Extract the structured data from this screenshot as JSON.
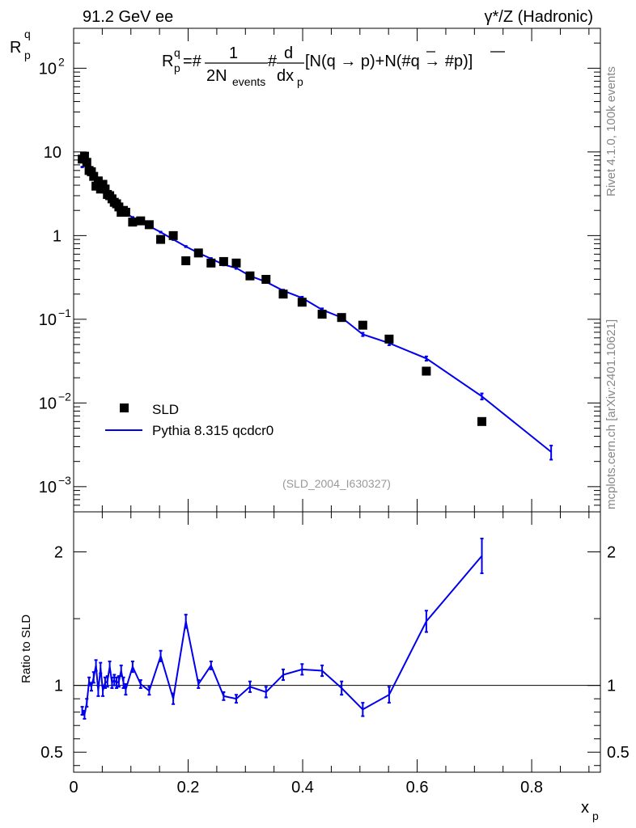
{
  "header": {
    "left_title": "91.2 GeV ee",
    "right_title": "γ*/Z (Hadronic)"
  },
  "side": {
    "rivet": "Rivet 4.1.0,  100k events",
    "mcplots": "mcplots.cern.ch [arXiv:2401.10621]"
  },
  "formula": {
    "lhs": "R",
    "lhs_sub": "p",
    "lhs_sup": "q",
    "eq": "=#",
    "frac_num": "1",
    "frac_den": "2N",
    "frac_den_sub": "events",
    "hash2": "#",
    "d_num": "d",
    "d_den": "dx",
    "d_den_sub": "p",
    "bracket": "[N(q →  p)+N(#q →  #p)]"
  },
  "analysis_tag": "(SLD_2004_I630327)",
  "legend": {
    "data_label": "SLD",
    "mc_label": "Pythia 8.315 qcdcr0"
  },
  "colors": {
    "mc": "#0000ee",
    "data": "#000000",
    "side_text": "#888888"
  },
  "chart_data": [
    {
      "type": "scatter+line",
      "ylabel": "R",
      "ylabel_sub": "p",
      "ylabel_sup": "q",
      "yscale": "log",
      "ylim": [
        0.0005,
        300
      ],
      "xlim": [
        0,
        0.92
      ],
      "yticks": [
        {
          "value": 0.001,
          "base": "10",
          "exp": "−3"
        },
        {
          "value": 0.01,
          "base": "10",
          "exp": "−2"
        },
        {
          "value": 0.1,
          "base": "10",
          "exp": "−1"
        },
        {
          "value": 1,
          "base": "1",
          "exp": ""
        },
        {
          "value": 10,
          "base": "10",
          "exp": ""
        },
        {
          "value": 100,
          "base": "10",
          "exp": "2"
        }
      ],
      "series": [
        {
          "name": "SLD",
          "kind": "markers",
          "x": [
            0.015,
            0.019,
            0.023,
            0.027,
            0.031,
            0.035,
            0.039,
            0.043,
            0.047,
            0.051,
            0.055,
            0.059,
            0.063,
            0.067,
            0.071,
            0.075,
            0.079,
            0.083,
            0.087,
            0.091,
            0.103,
            0.117,
            0.132,
            0.152,
            0.174,
            0.196,
            0.218,
            0.24,
            0.262,
            0.284,
            0.308,
            0.336,
            0.366,
            0.399,
            0.434,
            0.468,
            0.505,
            0.551,
            0.616,
            0.713
          ],
          "y": [
            8.2,
            8.9,
            7.5,
            6.0,
            5.8,
            5.1,
            3.9,
            4.5,
            3.6,
            4.1,
            3.6,
            3.1,
            3.0,
            2.75,
            2.5,
            2.4,
            2.2,
            1.9,
            2.0,
            1.9,
            1.45,
            1.5,
            1.35,
            0.9,
            1.0,
            0.5,
            0.62,
            0.47,
            0.49,
            0.47,
            0.33,
            0.3,
            0.2,
            0.16,
            0.115,
            0.105,
            0.085,
            0.058,
            0.024,
            0.006
          ]
        },
        {
          "name": "Pythia 8.315 qcdcr0",
          "kind": "line",
          "x": [
            0.015,
            0.019,
            0.023,
            0.027,
            0.031,
            0.035,
            0.039,
            0.043,
            0.047,
            0.051,
            0.055,
            0.059,
            0.063,
            0.067,
            0.071,
            0.075,
            0.079,
            0.083,
            0.087,
            0.091,
            0.103,
            0.117,
            0.132,
            0.152,
            0.174,
            0.196,
            0.218,
            0.24,
            0.262,
            0.284,
            0.308,
            0.336,
            0.366,
            0.399,
            0.434,
            0.468,
            0.505,
            0.551,
            0.616,
            0.713,
            0.834
          ],
          "y": [
            6.6,
            6.9,
            6.2,
            5.9,
            5.7,
            5.3,
            4.5,
            4.3,
            4.1,
            3.8,
            3.5,
            3.2,
            3.0,
            2.8,
            2.6,
            2.45,
            2.25,
            2.1,
            1.95,
            1.85,
            1.65,
            1.5,
            1.3,
            1.1,
            0.9,
            0.74,
            0.62,
            0.53,
            0.45,
            0.41,
            0.33,
            0.28,
            0.22,
            0.18,
            0.13,
            0.105,
            0.066,
            0.052,
            0.034,
            0.012,
            0.0026
          ],
          "yerr": [
            0.05,
            0.05,
            0.05,
            0.05,
            0.04,
            0.04,
            0.04,
            0.04,
            0.03,
            0.03,
            0.03,
            0.03,
            0.03,
            0.02,
            0.02,
            0.02,
            0.02,
            0.02,
            0.02,
            0.02,
            0.02,
            0.02,
            0.02,
            0.015,
            0.015,
            0.012,
            0.01,
            0.01,
            0.01,
            0.01,
            0.008,
            0.007,
            0.006,
            0.006,
            0.005,
            0.004,
            0.003,
            0.003,
            0.002,
            0.001,
            0.0005
          ]
        }
      ]
    },
    {
      "type": "line",
      "ylabel": "Ratio to SLD",
      "xlabel": "x",
      "xlabel_sub": "p",
      "ylim": [
        0.35,
        2.3
      ],
      "xlim": [
        0,
        0.92
      ],
      "yticks": [
        0.5,
        1,
        2
      ],
      "xticks": [
        0,
        0.2,
        0.4,
        0.6,
        0.8
      ],
      "xtick_labels": [
        "0",
        "0.2",
        "0.4",
        "0.6",
        "0.8"
      ],
      "reference": 1,
      "series": [
        {
          "name": "Pythia 8.315 qcdcr0 / SLD",
          "x": [
            0.015,
            0.019,
            0.023,
            0.027,
            0.031,
            0.035,
            0.039,
            0.043,
            0.047,
            0.051,
            0.055,
            0.059,
            0.063,
            0.067,
            0.071,
            0.075,
            0.079,
            0.083,
            0.087,
            0.091,
            0.103,
            0.117,
            0.132,
            0.152,
            0.174,
            0.196,
            0.218,
            0.24,
            0.262,
            0.284,
            0.308,
            0.336,
            0.366,
            0.399,
            0.434,
            0.468,
            0.505,
            0.551,
            0.616,
            0.713
          ],
          "y": [
            0.81,
            0.78,
            0.87,
            1.03,
            0.99,
            1.06,
            1.15,
            0.96,
            1.13,
            0.96,
            1.02,
            1.03,
            1.14,
            1.02,
            1.04,
            1.02,
            1.03,
            1.11,
            1.02,
            0.97,
            1.14,
            1.01,
            0.96,
            1.22,
            0.9,
            1.48,
            1.01,
            1.15,
            0.92,
            0.9,
            0.99,
            0.95,
            1.08,
            1.12,
            1.11,
            0.98,
            0.82,
            0.93,
            1.48,
            1.97
          ],
          "yerr": [
            0.03,
            0.03,
            0.03,
            0.03,
            0.03,
            0.04,
            0.04,
            0.04,
            0.04,
            0.04,
            0.04,
            0.04,
            0.04,
            0.04,
            0.04,
            0.04,
            0.04,
            0.04,
            0.04,
            0.04,
            0.04,
            0.03,
            0.03,
            0.04,
            0.04,
            0.05,
            0.03,
            0.03,
            0.03,
            0.03,
            0.04,
            0.04,
            0.04,
            0.04,
            0.04,
            0.05,
            0.05,
            0.06,
            0.08,
            0.13
          ]
        }
      ]
    }
  ]
}
